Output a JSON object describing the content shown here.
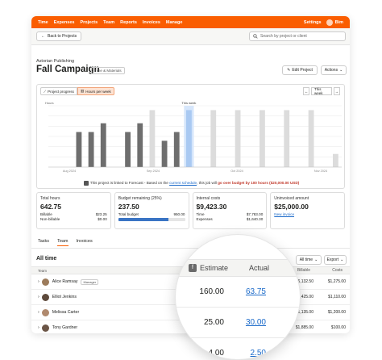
{
  "nav": {
    "items": [
      "Time",
      "Expenses",
      "Projects",
      "Team",
      "Reports",
      "Invoices",
      "Manage"
    ],
    "settings": "Settings",
    "user": "Bim"
  },
  "subbar": {
    "back_label": "Back to Projects",
    "search_placeholder": "Search by project or client"
  },
  "project": {
    "client": "Astorian Publishing",
    "title": "Fall Campaign",
    "badge": "Time & Materials",
    "edit_label": "Edit Project",
    "actions_label": "Actions"
  },
  "chart_controls": {
    "tab_progress": "Project progress",
    "tab_hours": "Hours per week",
    "this_week": "This week",
    "this_week_marker": "This week",
    "y_label": "Hours"
  },
  "chart_data": {
    "type": "bar",
    "note": "weekly hours; dark = logged, light = scheduled",
    "logged": [
      0,
      0,
      4,
      4,
      5,
      0,
      4,
      5,
      0,
      3,
      4,
      0,
      0,
      0,
      0,
      0,
      0,
      0,
      0,
      0,
      0,
      0,
      0,
      0
    ],
    "scheduled": [
      0,
      0,
      0,
      0,
      0,
      0,
      0,
      0,
      6.5,
      0,
      0,
      6.5,
      0,
      6.5,
      0,
      6.5,
      0,
      6.5,
      0,
      6.5,
      0,
      6.5,
      0,
      1.5
    ],
    "x_tick_labels": [
      "Aug 2024",
      "",
      "Sep 2024",
      "",
      "Oct 2024",
      "",
      "Nov 2024"
    ],
    "highlight_index": 11,
    "y_gridlines": 6
  },
  "chart_note": {
    "prefix": "This project is linked to Forecast - Based on the ",
    "link": "current schedule",
    "mid": ", this job will ",
    "warn": "go over budget by 100 hours ($20,000.00 USD)"
  },
  "stats": {
    "total_hours": {
      "label": "Total hours",
      "value": "642.75",
      "billable_label": "Billable",
      "billable": "$23.25",
      "nonbillable_label": "Non-billable",
      "nonbillable": "$0.00"
    },
    "budget": {
      "label": "Budget remaining (25%)",
      "value": "237.50",
      "total_label": "Total budget",
      "total": "950.00",
      "fill_pct": 75
    },
    "costs": {
      "label": "Internal costs",
      "value": "$9,423.30",
      "time_label": "Time",
      "time": "$7,783.00",
      "exp_label": "Expenses",
      "exp": "$1,640.30"
    },
    "uninvoiced": {
      "label": "Uninvoiced amount",
      "value": "$25,000.00",
      "link": "New invoice"
    }
  },
  "tabs": [
    "Tasks",
    "Team",
    "Invoices"
  ],
  "section": {
    "title": "All time",
    "filter": "All time",
    "export": "Export"
  },
  "table": {
    "head": {
      "name": "Team",
      "billable": "Billable",
      "costs": "Costs"
    },
    "rows": [
      {
        "name": "Alice Ramsay",
        "tag": "Manager",
        "billable": "$16,132.50",
        "costs": "$1,275.00"
      },
      {
        "name": "Elliot Jenkins",
        "billable": "$6,425.00",
        "costs": "$1,110.00"
      },
      {
        "name": "Melissa Carter",
        "billable": "$1,135.00",
        "costs": "$1,200.00"
      },
      {
        "name": "Tony Gardner",
        "billable": "$1,885.00",
        "costs": "$100.00"
      }
    ]
  },
  "magnifier": {
    "estimate_label": "Estimate",
    "actual_label": "Actual",
    "rows": [
      {
        "estimate": "160.00",
        "actual": "63.75"
      },
      {
        "estimate": "25.00",
        "actual": "30.00"
      },
      {
        "estimate": "4.00",
        "actual": "2.50"
      }
    ]
  }
}
